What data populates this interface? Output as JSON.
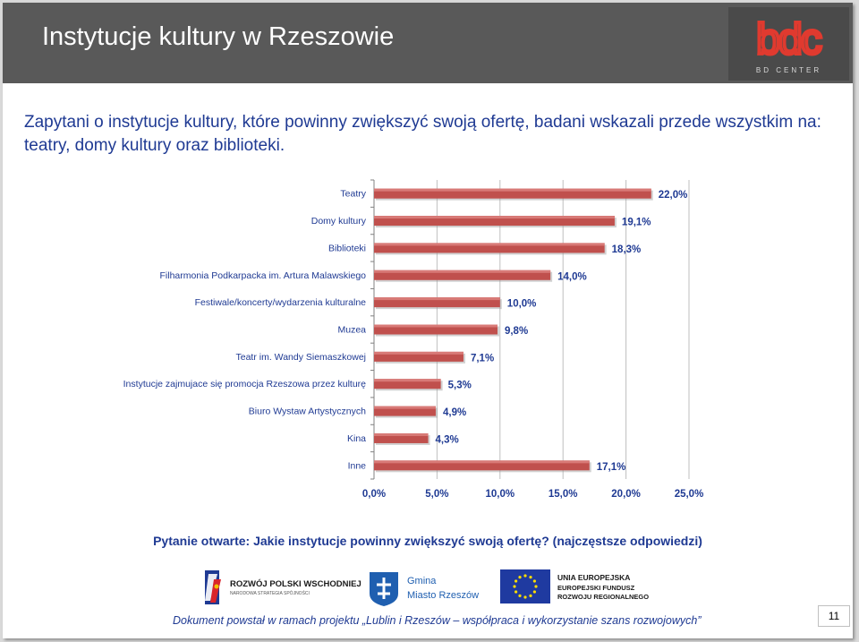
{
  "header": {
    "title": "Instytucje kultury w Rzeszowie",
    "logo_letters": "bdc",
    "logo_subtitle": "BD CENTER"
  },
  "intro_text": "Zapytani o instytucje kultury, które powinny zwiększyć swoją ofertę, badani wskazali przede wszystkim na: teatry, domy kultury oraz biblioteki.",
  "chart_data": {
    "type": "bar",
    "orientation": "horizontal",
    "categories": [
      "Teatry",
      "Domy kultury",
      "Biblioteki",
      "Filharmonia Podkarpacka im. Artura Malawskiego",
      "Festiwale/koncerty/wydarzenia kulturalne",
      "Muzea",
      "Teatr im. Wandy Siemaszkowej",
      "Instytucje zajmujace się promocja Rzeszowa przez kulturę",
      "Biuro Wystaw Artystycznych",
      "Kina",
      "Inne"
    ],
    "values": [
      22.0,
      19.1,
      18.3,
      14.0,
      10.0,
      9.8,
      7.1,
      5.3,
      4.9,
      4.3,
      17.1
    ],
    "value_labels": [
      "22,0%",
      "19,1%",
      "18,3%",
      "14,0%",
      "10,0%",
      "9,8%",
      "7,1%",
      "5,3%",
      "4,9%",
      "4,3%",
      "17,1%"
    ],
    "x_ticks": [
      0,
      5,
      10,
      15,
      20,
      25
    ],
    "x_tick_labels": [
      "0,0%",
      "5,0%",
      "10,0%",
      "15,0%",
      "20,0%",
      "25,0%"
    ],
    "xlim": [
      0,
      25
    ],
    "grid": true,
    "colors": {
      "bar": "#c0504d",
      "bar_dark": "#9b3330",
      "grid": "#bfbfbf",
      "label": "#1f3a93"
    }
  },
  "question": "Pytanie otwarte: Jakie instytucje powinny zwiększyć swoją ofertę? (najczęstsze odpowiedzi)",
  "logos": {
    "rpw_name": "ROZWÓJ POLSKI WSCHODNIEJ",
    "rpw_sub": "NARODOWA STRATEGIA SPÓJNOŚCI",
    "gmina_line1": "Gmina",
    "gmina_line2": "Miasto Rzeszów",
    "eu_line1": "UNIA EUROPEJSKA",
    "eu_line2": "EUROPEJSKI FUNDUSZ",
    "eu_line3": "ROZWOJU REGIONALNEGO"
  },
  "footer": "Dokument powstał w ramach projektu „Lublin i Rzeszów – współpraca i wykorzystanie szans rozwojowych”",
  "page_number": "11"
}
